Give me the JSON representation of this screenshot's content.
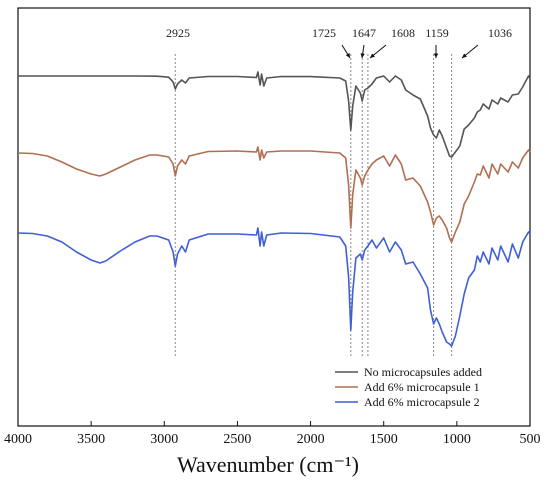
{
  "chart_data": {
    "type": "line",
    "xlabel": "Wavenumber (cm⁻¹)",
    "xlim": [
      4000,
      500
    ],
    "x_reversed": true,
    "x_ticks": [
      4000,
      3500,
      3000,
      2500,
      2000,
      1500,
      1000,
      500
    ],
    "y_ticks_shown": false,
    "legend_position": "bottom-right",
    "annotations": [
      {
        "label": "2925",
        "x": 2925
      },
      {
        "label": "1725",
        "x": 1725
      },
      {
        "label": "1647",
        "x": 1647
      },
      {
        "label": "1608",
        "x": 1608
      },
      {
        "label": "1159",
        "x": 1159
      },
      {
        "label": "1036",
        "x": 1036
      }
    ],
    "series": [
      {
        "name": "No microcapsules added",
        "color": "#555555",
        "points": [
          [
            4000,
            0.0
          ],
          [
            3600,
            0.0
          ],
          [
            3200,
            0.0
          ],
          [
            3050,
            0.2
          ],
          [
            2970,
            1.2
          ],
          [
            2940,
            6.0
          ],
          [
            2925,
            13.0
          ],
          [
            2910,
            8.0
          ],
          [
            2880,
            4.0
          ],
          [
            2855,
            7.0
          ],
          [
            2830,
            2.0
          ],
          [
            2700,
            0.5
          ],
          [
            2500,
            0.5
          ],
          [
            2370,
            1.5
          ],
          [
            2360,
            -4.0
          ],
          [
            2345,
            9.0
          ],
          [
            2335,
            -2.0
          ],
          [
            2320,
            10.0
          ],
          [
            2300,
            2.0
          ],
          [
            2200,
            0.5
          ],
          [
            2000,
            0.6
          ],
          [
            1800,
            2.0
          ],
          [
            1760,
            5.0
          ],
          [
            1740,
            25.0
          ],
          [
            1725,
            54.0
          ],
          [
            1712,
            30.0
          ],
          [
            1690,
            10.0
          ],
          [
            1660,
            17.0
          ],
          [
            1647,
            25.0
          ],
          [
            1630,
            14.0
          ],
          [
            1608,
            12.0
          ],
          [
            1580,
            8.0
          ],
          [
            1550,
            2.0
          ],
          [
            1500,
            0.0
          ],
          [
            1460,
            6.0
          ],
          [
            1420,
            0.0
          ],
          [
            1380,
            4.0
          ],
          [
            1350,
            14.0
          ],
          [
            1300,
            19.0
          ],
          [
            1250,
            23.0
          ],
          [
            1200,
            40.0
          ],
          [
            1180,
            52.0
          ],
          [
            1159,
            59.0
          ],
          [
            1140,
            62.0
          ],
          [
            1120,
            54.0
          ],
          [
            1100,
            60.0
          ],
          [
            1070,
            72.0
          ],
          [
            1050,
            80.0
          ],
          [
            1036,
            81.0
          ],
          [
            1010,
            76.0
          ],
          [
            980,
            70.0
          ],
          [
            950,
            53.0
          ],
          [
            920,
            49.0
          ],
          [
            880,
            42.0
          ],
          [
            860,
            36.0
          ],
          [
            840,
            34.0
          ],
          [
            820,
            28.0
          ],
          [
            780,
            33.0
          ],
          [
            760,
            24.0
          ],
          [
            720,
            28.0
          ],
          [
            700,
            22.0
          ],
          [
            650,
            26.0
          ],
          [
            620,
            19.0
          ],
          [
            580,
            18.0
          ],
          [
            550,
            11.0
          ],
          [
            510,
            0.0
          ],
          [
            500,
            2.0
          ]
        ]
      },
      {
        "name": "Add 6% microcapsule 1",
        "color": "#b36e4f",
        "points": [
          [
            4000,
            3.0
          ],
          [
            3900,
            3.5
          ],
          [
            3800,
            6.0
          ],
          [
            3700,
            12.0
          ],
          [
            3600,
            19.0
          ],
          [
            3500,
            24.0
          ],
          [
            3440,
            26.0
          ],
          [
            3400,
            24.0
          ],
          [
            3300,
            17.0
          ],
          [
            3200,
            10.0
          ],
          [
            3100,
            5.0
          ],
          [
            3050,
            5.0
          ],
          [
            2970,
            7.0
          ],
          [
            2940,
            14.0
          ],
          [
            2925,
            26.0
          ],
          [
            2910,
            16.0
          ],
          [
            2880,
            10.0
          ],
          [
            2855,
            14.0
          ],
          [
            2830,
            6.0
          ],
          [
            2700,
            1.5
          ],
          [
            2500,
            1.0
          ],
          [
            2370,
            2.0
          ],
          [
            2360,
            -3.0
          ],
          [
            2345,
            10.0
          ],
          [
            2335,
            0.0
          ],
          [
            2320,
            8.0
          ],
          [
            2300,
            2.0
          ],
          [
            2200,
            1.0
          ],
          [
            2000,
            1.0
          ],
          [
            1800,
            3.0
          ],
          [
            1760,
            8.0
          ],
          [
            1740,
            35.0
          ],
          [
            1725,
            78.0
          ],
          [
            1712,
            45.0
          ],
          [
            1690,
            20.0
          ],
          [
            1660,
            28.0
          ],
          [
            1647,
            35.0
          ],
          [
            1630,
            26.0
          ],
          [
            1608,
            20.0
          ],
          [
            1580,
            14.0
          ],
          [
            1550,
            10.0
          ],
          [
            1500,
            6.0
          ],
          [
            1460,
            16.0
          ],
          [
            1420,
            5.0
          ],
          [
            1380,
            14.0
          ],
          [
            1350,
            30.0
          ],
          [
            1300,
            28.0
          ],
          [
            1250,
            36.0
          ],
          [
            1200,
            52.0
          ],
          [
            1180,
            62.0
          ],
          [
            1159,
            75.0
          ],
          [
            1140,
            68.0
          ],
          [
            1120,
            66.0
          ],
          [
            1100,
            70.0
          ],
          [
            1070,
            78.0
          ],
          [
            1050,
            88.0
          ],
          [
            1036,
            92.0
          ],
          [
            1010,
            82.0
          ],
          [
            980,
            72.0
          ],
          [
            950,
            54.0
          ],
          [
            920,
            46.0
          ],
          [
            880,
            32.0
          ],
          [
            860,
            24.0
          ],
          [
            840,
            25.0
          ],
          [
            820,
            16.0
          ],
          [
            780,
            28.0
          ],
          [
            760,
            14.0
          ],
          [
            720,
            24.0
          ],
          [
            700,
            14.0
          ],
          [
            650,
            22.0
          ],
          [
            620,
            12.0
          ],
          [
            580,
            18.0
          ],
          [
            550,
            8.0
          ],
          [
            510,
            0.0
          ],
          [
            500,
            2.0
          ]
        ]
      },
      {
        "name": "Add 6% microcapsule 2",
        "color": "#3f5fd6",
        "points": [
          [
            4000,
            1.0
          ],
          [
            3900,
            1.5
          ],
          [
            3800,
            4.0
          ],
          [
            3700,
            10.0
          ],
          [
            3600,
            20.0
          ],
          [
            3500,
            28.0
          ],
          [
            3440,
            31.0
          ],
          [
            3400,
            29.0
          ],
          [
            3300,
            19.0
          ],
          [
            3200,
            10.0
          ],
          [
            3100,
            4.0
          ],
          [
            3050,
            4.0
          ],
          [
            2970,
            8.0
          ],
          [
            2940,
            20.0
          ],
          [
            2925,
            34.0
          ],
          [
            2910,
            22.0
          ],
          [
            2880,
            14.0
          ],
          [
            2855,
            20.0
          ],
          [
            2830,
            8.0
          ],
          [
            2700,
            2.0
          ],
          [
            2500,
            2.0
          ],
          [
            2370,
            3.0
          ],
          [
            2360,
            -4.0
          ],
          [
            2345,
            14.0
          ],
          [
            2335,
            0.0
          ],
          [
            2320,
            14.0
          ],
          [
            2300,
            3.0
          ],
          [
            2200,
            1.0
          ],
          [
            2000,
            1.5
          ],
          [
            1800,
            5.0
          ],
          [
            1760,
            14.0
          ],
          [
            1740,
            45.0
          ],
          [
            1725,
            98.0
          ],
          [
            1712,
            60.0
          ],
          [
            1690,
            26.0
          ],
          [
            1660,
            22.0
          ],
          [
            1647,
            28.0
          ],
          [
            1630,
            18.0
          ],
          [
            1608,
            14.0
          ],
          [
            1580,
            8.0
          ],
          [
            1550,
            16.0
          ],
          [
            1500,
            6.0
          ],
          [
            1460,
            20.0
          ],
          [
            1420,
            10.0
          ],
          [
            1380,
            18.0
          ],
          [
            1350,
            32.0
          ],
          [
            1300,
            30.0
          ],
          [
            1250,
            42.0
          ],
          [
            1200,
            56.0
          ],
          [
            1180,
            78.0
          ],
          [
            1159,
            92.0
          ],
          [
            1140,
            86.0
          ],
          [
            1120,
            92.0
          ],
          [
            1100,
            100.0
          ],
          [
            1070,
            110.0
          ],
          [
            1050,
            112.0
          ],
          [
            1036,
            114.0
          ],
          [
            1010,
            104.0
          ],
          [
            980,
            84.0
          ],
          [
            950,
            62.0
          ],
          [
            920,
            46.0
          ],
          [
            880,
            38.0
          ],
          [
            860,
            24.0
          ],
          [
            840,
            30.0
          ],
          [
            820,
            20.0
          ],
          [
            780,
            32.0
          ],
          [
            760,
            16.0
          ],
          [
            720,
            28.0
          ],
          [
            700,
            14.0
          ],
          [
            650,
            30.0
          ],
          [
            620,
            12.0
          ],
          [
            580,
            26.0
          ],
          [
            550,
            10.0
          ],
          [
            510,
            0.0
          ],
          [
            500,
            2.0
          ]
        ]
      }
    ]
  }
}
